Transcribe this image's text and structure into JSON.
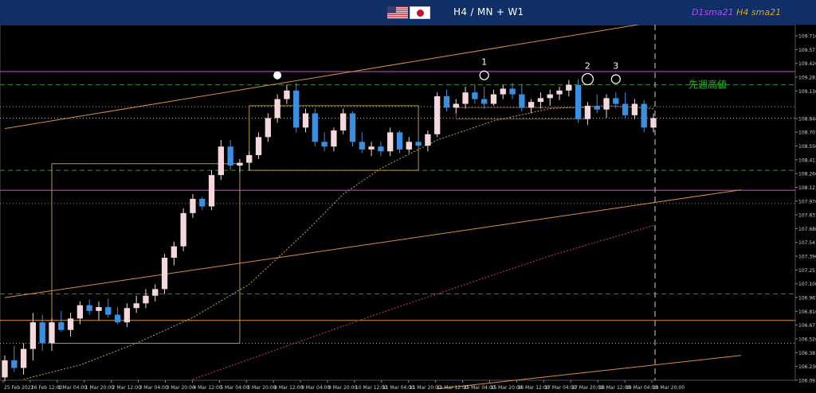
{
  "header": {
    "timeframe": "H4 / MN + W1",
    "sma_d1": "D1sma21",
    "sma_h4": "H4 sma21"
  },
  "annotations": {
    "last_week_high": "先週高値",
    "markers": [
      "1",
      "2",
      "3"
    ]
  },
  "colors": {
    "background": "#000000",
    "bull_candle": "#f5d8dc",
    "bear_candle": "#3a8fe0",
    "trendline": "#d9903c",
    "sma_h4": "#c9a44a",
    "sma_d1": "#b03060",
    "level_magenta": "#c040c0",
    "level_green_dashed": "#3c8c3c",
    "box": "#b8963c",
    "label_text": "#2fb52f"
  },
  "chart_data": {
    "type": "candlestick",
    "symbol_flags": [
      "us-flag",
      "jp-flag"
    ],
    "ylim": [
      106.09,
      109.8
    ],
    "y_ticks": [
      109.716,
      109.571,
      109.426,
      109.281,
      109.136,
      108.846,
      108.701,
      108.556,
      108.411,
      108.266,
      108.121,
      107.976,
      107.831,
      107.686,
      107.541,
      107.396,
      107.251,
      107.106,
      106.961,
      106.816,
      106.671,
      106.526,
      106.381,
      106.236,
      106.091
    ],
    "x_ticks": [
      "25 Feb 2021",
      "26 Feb 12:00",
      "1 Mar 04:00",
      "1 Mar 20:00",
      "2 Mar 12:00",
      "3 Mar 04:00",
      "3 Mar 20:00",
      "4 Mar 12:00",
      "5 Mar 04:00",
      "5 Mar 20:00",
      "8 Mar 12:00",
      "9 Mar 04:00",
      "9 Mar 20:00",
      "10 Mar 12:00",
      "11 Mar 04:00",
      "11 Mar 20:00",
      "12 Mar 12:00",
      "15 Mar 04:00",
      "15 Mar 20:00",
      "16 Mar 12:00",
      "17 Mar 04:00",
      "17 Mar 20:00",
      "18 Mar 12:00",
      "19 Mar 04:00",
      "19 Mar 20:00"
    ],
    "horizontal_levels": [
      {
        "style": "solid-magenta",
        "value": 109.34
      },
      {
        "style": "dashed-green",
        "value": 109.2
      },
      {
        "style": "dotted",
        "value": 108.97
      },
      {
        "style": "dotted",
        "value": 108.85
      },
      {
        "style": "dashed-green",
        "value": 108.3
      },
      {
        "style": "solid-magenta",
        "value": 108.09
      },
      {
        "style": "dotted",
        "value": 107.95
      },
      {
        "style": "dashed-green",
        "value": 107.0
      },
      {
        "style": "solid-orange",
        "value": 106.72
      },
      {
        "style": "dotted",
        "value": 106.48
      }
    ],
    "candles": [
      [
        106.12,
        106.35,
        106.08,
        106.3
      ],
      [
        106.3,
        106.45,
        106.18,
        106.22
      ],
      [
        106.22,
        106.48,
        106.15,
        106.42
      ],
      [
        106.42,
        106.8,
        106.3,
        106.7
      ],
      [
        106.7,
        106.78,
        106.4,
        106.48
      ],
      [
        106.48,
        106.75,
        106.4,
        106.7
      ],
      [
        106.7,
        106.82,
        106.6,
        106.62
      ],
      [
        106.62,
        106.8,
        106.55,
        106.74
      ],
      [
        106.74,
        106.92,
        106.68,
        106.88
      ],
      [
        106.88,
        106.94,
        106.78,
        106.82
      ],
      [
        106.82,
        106.92,
        106.72,
        106.86
      ],
      [
        106.86,
        106.95,
        106.75,
        106.78
      ],
      [
        106.78,
        106.86,
        106.68,
        106.7
      ],
      [
        106.7,
        106.9,
        106.65,
        106.85
      ],
      [
        106.85,
        106.98,
        106.8,
        106.9
      ],
      [
        106.9,
        107.05,
        106.85,
        106.98
      ],
      [
        106.98,
        107.1,
        106.92,
        107.05
      ],
      [
        107.05,
        107.42,
        107.0,
        107.38
      ],
      [
        107.38,
        107.55,
        107.3,
        107.5
      ],
      [
        107.5,
        107.9,
        107.45,
        107.85
      ],
      [
        107.85,
        108.05,
        107.8,
        108.0
      ],
      [
        108.0,
        108.02,
        107.88,
        107.92
      ],
      [
        107.92,
        108.3,
        107.88,
        108.25
      ],
      [
        108.25,
        108.62,
        108.2,
        108.55
      ],
      [
        108.55,
        108.62,
        108.3,
        108.35
      ],
      [
        108.35,
        108.42,
        108.28,
        108.38
      ],
      [
        108.38,
        108.5,
        108.3,
        108.46
      ],
      [
        108.46,
        108.7,
        108.42,
        108.65
      ],
      [
        108.65,
        108.9,
        108.6,
        108.85
      ],
      [
        108.85,
        109.1,
        108.8,
        109.05
      ],
      [
        109.05,
        109.2,
        109.0,
        109.14
      ],
      [
        109.14,
        109.22,
        108.7,
        108.75
      ],
      [
        108.75,
        108.95,
        108.7,
        108.9
      ],
      [
        108.9,
        108.95,
        108.55,
        108.6
      ],
      [
        108.6,
        108.7,
        108.5,
        108.55
      ],
      [
        108.55,
        108.75,
        108.5,
        108.72
      ],
      [
        108.72,
        108.95,
        108.68,
        108.9
      ],
      [
        108.9,
        108.92,
        108.55,
        108.6
      ],
      [
        108.6,
        108.7,
        108.48,
        108.52
      ],
      [
        108.52,
        108.6,
        108.45,
        108.55
      ],
      [
        108.55,
        108.6,
        108.45,
        108.5
      ],
      [
        108.5,
        108.75,
        108.45,
        108.7
      ],
      [
        108.7,
        108.72,
        108.48,
        108.52
      ],
      [
        108.52,
        108.65,
        108.48,
        108.6
      ],
      [
        108.6,
        108.68,
        108.52,
        108.56
      ],
      [
        108.56,
        108.72,
        108.5,
        108.68
      ],
      [
        108.68,
        109.12,
        108.65,
        109.08
      ],
      [
        109.08,
        109.15,
        108.92,
        108.96
      ],
      [
        108.96,
        109.05,
        108.9,
        109.0
      ],
      [
        109.0,
        109.18,
        108.95,
        109.12
      ],
      [
        109.12,
        109.2,
        109.0,
        109.05
      ],
      [
        109.05,
        109.18,
        108.95,
        109.0
      ],
      [
        109.0,
        109.15,
        108.98,
        109.1
      ],
      [
        109.1,
        109.2,
        109.05,
        109.16
      ],
      [
        109.16,
        109.22,
        109.05,
        109.1
      ],
      [
        109.1,
        109.2,
        108.92,
        108.96
      ],
      [
        108.96,
        109.05,
        108.9,
        109.02
      ],
      [
        109.02,
        109.12,
        108.95,
        109.06
      ],
      [
        109.06,
        109.15,
        108.98,
        109.1
      ],
      [
        109.1,
        109.18,
        109.04,
        109.14
      ],
      [
        109.14,
        109.25,
        109.08,
        109.2
      ],
      [
        109.2,
        109.26,
        108.8,
        108.84
      ],
      [
        108.84,
        109.02,
        108.78,
        108.98
      ],
      [
        108.98,
        109.1,
        108.9,
        108.94
      ],
      [
        108.94,
        109.1,
        108.85,
        109.06
      ],
      [
        109.06,
        109.12,
        108.95,
        109.0
      ],
      [
        109.0,
        109.12,
        108.85,
        108.88
      ],
      [
        108.88,
        109.05,
        108.84,
        109.0
      ],
      [
        109.0,
        109.04,
        108.7,
        108.75
      ],
      [
        108.75,
        108.9,
        108.7,
        108.85
      ]
    ],
    "sma_h4": [
      [
        2,
        106.1
      ],
      [
        8,
        106.25
      ],
      [
        14,
        106.48
      ],
      [
        20,
        106.75
      ],
      [
        26,
        107.1
      ],
      [
        32,
        107.65
      ],
      [
        36,
        108.05
      ],
      [
        40,
        108.32
      ],
      [
        46,
        108.62
      ],
      [
        52,
        108.82
      ],
      [
        58,
        108.95
      ],
      [
        64,
        108.98
      ],
      [
        69,
        108.95
      ]
    ],
    "sma_d1": [
      [
        20,
        106.1
      ],
      [
        40,
        106.8
      ],
      [
        58,
        107.4
      ],
      [
        69,
        107.72
      ]
    ],
    "trendlines": [
      [
        [
          0,
          108.74
        ],
        [
          69,
          109.86
        ]
      ],
      [
        [
          0,
          106.96
        ],
        [
          69,
          107.96
        ]
      ],
      [
        [
          46,
          106.0
        ],
        [
          69,
          106.25
        ]
      ]
    ],
    "marker_positions": [
      [
        51,
        109.3
      ],
      [
        62,
        109.26
      ],
      [
        65,
        109.26
      ]
    ],
    "peak_dot": [
      29,
      109.3
    ],
    "boxes": [
      {
        "from": 26,
        "to": 44,
        "top": 108.98,
        "bottom": 108.3
      },
      {
        "from": 5,
        "to": 25,
        "top": 108.37,
        "bottom": 106.48
      },
      {
        "from": 48,
        "to": 62,
        "top": 108.96,
        "bottom": 108.84
      }
    ]
  }
}
